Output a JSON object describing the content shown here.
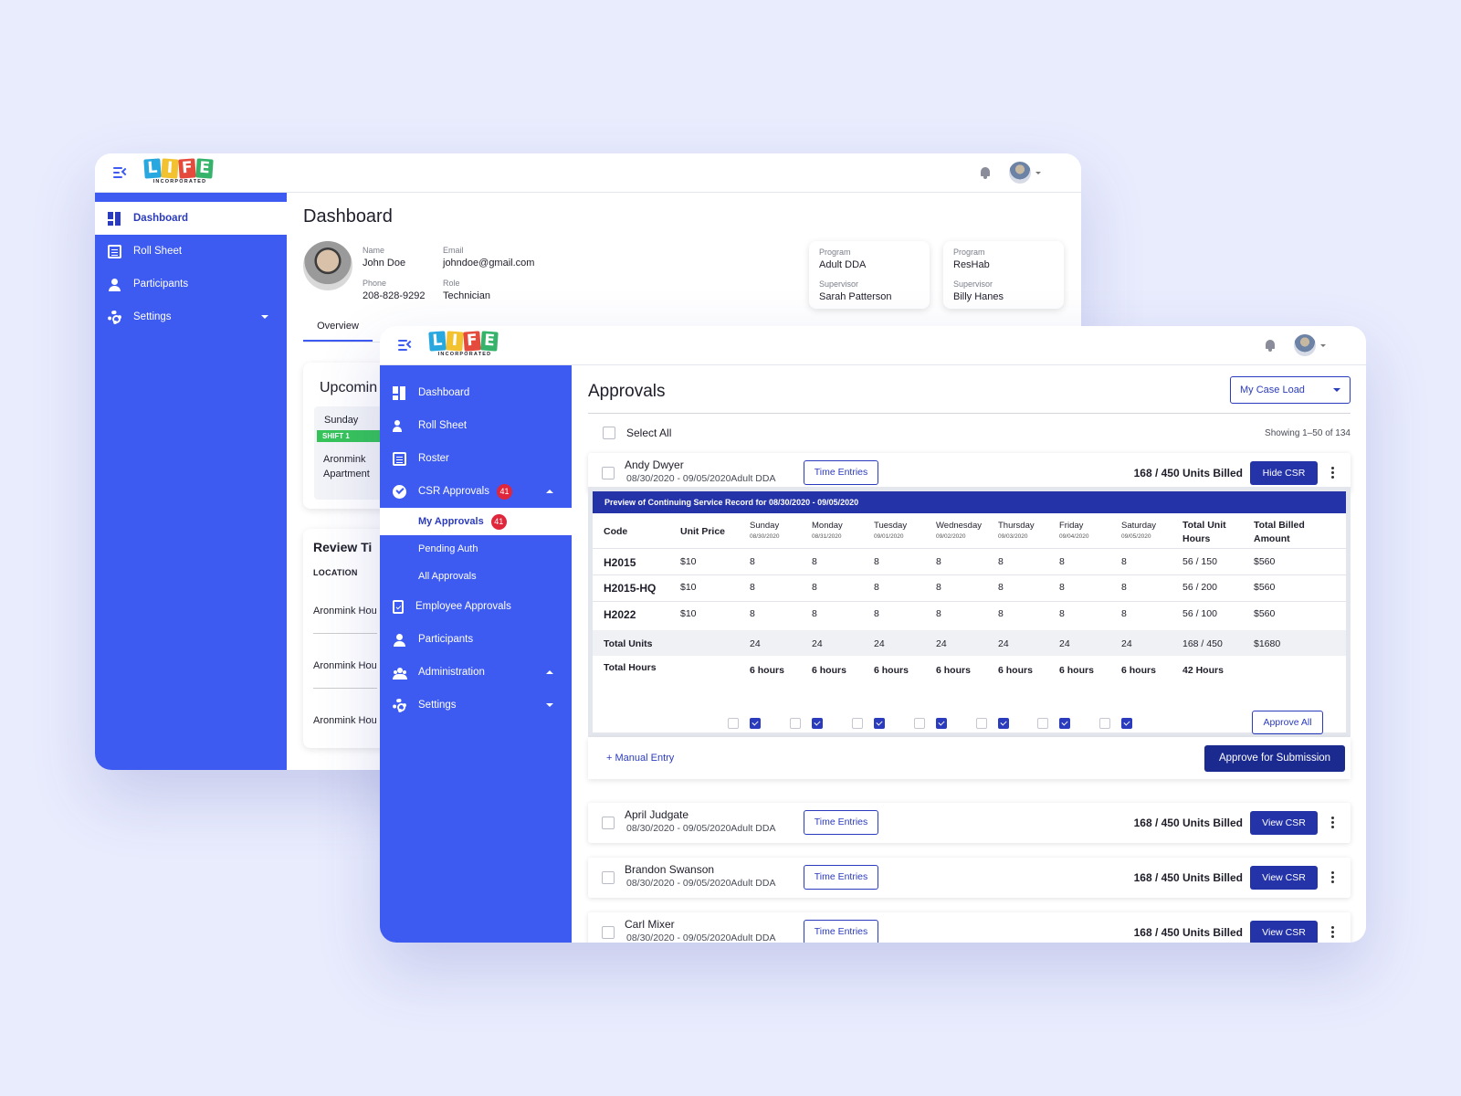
{
  "brand": {
    "letters": [
      "L",
      "I",
      "F",
      "E"
    ],
    "tile_colors": [
      "#29a8e0",
      "#f2c230",
      "#e44b3c",
      "#35b36a"
    ],
    "tagline": "INCORPORATED"
  },
  "colors": {
    "primary": "#3d5af1",
    "navy": "#2433a8",
    "badge": "#e0263b"
  },
  "dashboard": {
    "sidebar": [
      {
        "label": "Dashboard",
        "icon": "dashboard-icon",
        "active": true
      },
      {
        "label": "Roll Sheet",
        "icon": "roll-sheet-icon"
      },
      {
        "label": "Participants",
        "icon": "person-icon"
      },
      {
        "label": "Settings",
        "icon": "gear-icon"
      }
    ],
    "title": "Dashboard",
    "profile": {
      "name_label": "Name",
      "name": "John Doe",
      "email_label": "Email",
      "email": "johndoe@gmail.com",
      "phone_label": "Phone",
      "phone": "208-828-9292",
      "role_label": "Role",
      "role": "Technician"
    },
    "programs": [
      {
        "program_label": "Program",
        "program": "Adult DDA",
        "supervisor_label": "Supervisor",
        "supervisor": "Sarah Patterson"
      },
      {
        "program_label": "Program",
        "program": "ResHab",
        "supervisor_label": "Supervisor",
        "supervisor": "Billy Hanes"
      }
    ],
    "tab": "Overview",
    "upcoming": {
      "title": "Upcomin",
      "day": "Sunday",
      "shift": "SHIFT 1",
      "location": "Aronmink Apartment"
    },
    "review": {
      "title": "Review Ti",
      "col": "LOCATION",
      "rows": [
        "Aronmink Hou",
        "Aronmink Hou",
        "Aronmink Hou"
      ]
    }
  },
  "approvals_window": {
    "sidebar": [
      {
        "label": "Dashboard",
        "icon": "dashboard-icon"
      },
      {
        "label": "Roll Sheet",
        "icon": "person-check-icon"
      },
      {
        "label": "Roster",
        "icon": "roster-icon"
      },
      {
        "label": "CSR Approvals",
        "icon": "check-circle-icon",
        "badge": "41"
      },
      {
        "label": "My Approvals",
        "badge": "41",
        "active": true
      },
      {
        "label": "Pending Auth"
      },
      {
        "label": "All Approvals"
      },
      {
        "label": "Employee Approvals",
        "icon": "document-check-icon"
      },
      {
        "label": "Participants",
        "icon": "person-icon"
      },
      {
        "label": "Administration",
        "icon": "group-icon"
      },
      {
        "label": "Settings",
        "icon": "gear-icon"
      }
    ],
    "title": "Approvals",
    "filter": "My Case Load",
    "select_all": "Select All",
    "showing": "Showing 1–50 of 134",
    "rows": [
      {
        "name": "Andy Dwyer",
        "dates": "08/30/2020 - 09/05/2020Adult DDA",
        "time_entries": "Time Entries",
        "units": "168 / 450 Units Billed",
        "action": "Hide CSR"
      },
      {
        "name": "April Judgate",
        "dates": "08/30/2020 - 09/05/2020Adult DDA",
        "time_entries": "Time Entries",
        "units": "168 / 450 Units Billed",
        "action": "View CSR"
      },
      {
        "name": "Brandon Swanson",
        "dates": "08/30/2020 - 09/05/2020Adult DDA",
        "time_entries": "Time Entries",
        "units": "168 / 450 Units Billed",
        "action": "View CSR"
      },
      {
        "name": "Carl Mixer",
        "dates": "08/30/2020 - 09/05/2020Adult DDA",
        "time_entries": "Time Entries",
        "units": "168 / 450 Units Billed",
        "action": "View CSR"
      }
    ],
    "preview": {
      "title": "Preview of Continuing Service Record  for 08/30/2020 - 09/05/2020",
      "code_header": "Code",
      "price_header": "Unit Price",
      "days": [
        {
          "day": "Sunday",
          "date": "08/30/2020"
        },
        {
          "day": "Monday",
          "date": "08/31/2020"
        },
        {
          "day": "Tuesday",
          "date": "09/01/2020"
        },
        {
          "day": "Wednesday",
          "date": "09/02/2020"
        },
        {
          "day": "Thursday",
          "date": "09/03/2020"
        },
        {
          "day": "Friday",
          "date": "09/04/2020"
        },
        {
          "day": "Saturday",
          "date": "09/05/2020"
        }
      ],
      "total_unit_hours_header": "Total Unit Hours",
      "total_billed_header": "Total Billed Amount",
      "lines": [
        {
          "code": "H2015",
          "price": "$10",
          "days": [
            "8",
            "8",
            "8",
            "8",
            "8",
            "8",
            "8"
          ],
          "unit_hours": "56 / 150",
          "billed": "$560"
        },
        {
          "code": "H2015-HQ",
          "price": "$10",
          "days": [
            "8",
            "8",
            "8",
            "8",
            "8",
            "8",
            "8"
          ],
          "unit_hours": "56 / 200",
          "billed": "$560"
        },
        {
          "code": "H2022",
          "price": "$10",
          "days": [
            "8",
            "8",
            "8",
            "8",
            "8",
            "8",
            "8"
          ],
          "unit_hours": "56 / 100",
          "billed": "$560"
        }
      ],
      "total_units": {
        "label": "Total Units",
        "days": [
          "24",
          "24",
          "24",
          "24",
          "24",
          "24",
          "24"
        ],
        "unit_hours": "168 / 450",
        "billed": "$1680"
      },
      "total_hours": {
        "label": "Total Hours",
        "days": [
          "6 hours",
          "6 hours",
          "6 hours",
          "6 hours",
          "6 hours",
          "6 hours",
          "6 hours"
        ],
        "total": "42 Hours"
      },
      "approve_all": "Approve All"
    },
    "manual_entry": "+ Manual Entry",
    "submit": "Approve for Submission"
  }
}
